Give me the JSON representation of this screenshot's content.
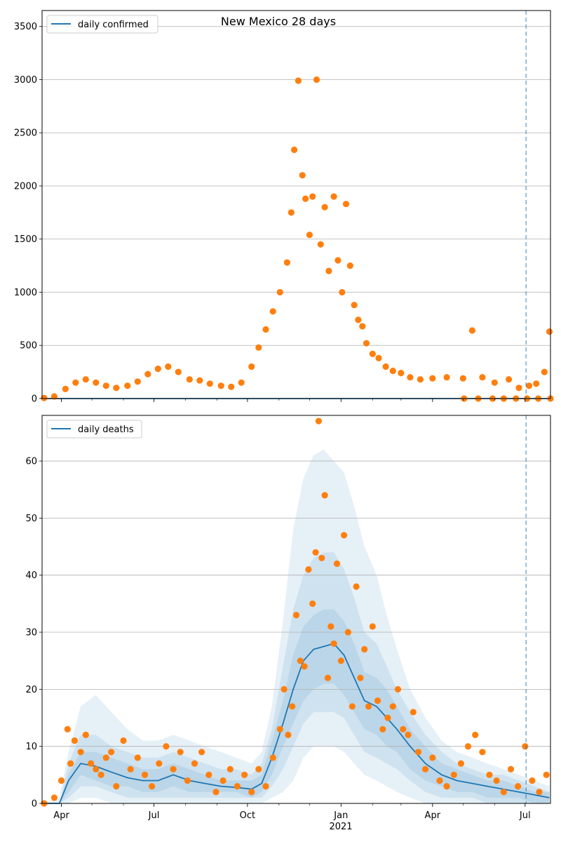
{
  "chart_data": [
    {
      "type": "scatter",
      "title": "New Mexico 28 days",
      "legend": {
        "label": "daily confirmed",
        "placement": "top-left"
      },
      "x_range": [
        "2020-03-13",
        "2021-07-26"
      ],
      "ylim": [
        0,
        3650
      ],
      "y_ticks": [
        0,
        500,
        1000,
        1500,
        2000,
        2500,
        3000,
        3500
      ],
      "grid": "horizontal",
      "forecast_start": "2021-07-02",
      "colors": {
        "line": "#1f77b4",
        "points": "#ff7f0e",
        "band": "#1f77b4",
        "vline": "#1f77b4"
      },
      "line_series": {
        "name": "daily confirmed",
        "x": [
          "2020-03-13",
          "2021-07-26"
        ],
        "y": [
          0,
          0
        ]
      },
      "observed": {
        "x": [
          "2020-03-15",
          "2020-03-25",
          "2020-04-05",
          "2020-04-15",
          "2020-04-25",
          "2020-05-05",
          "2020-05-15",
          "2020-05-25",
          "2020-06-05",
          "2020-06-15",
          "2020-06-25",
          "2020-07-05",
          "2020-07-15",
          "2020-07-25",
          "2020-08-05",
          "2020-08-15",
          "2020-08-25",
          "2020-09-05",
          "2020-09-15",
          "2020-09-25",
          "2020-10-05",
          "2020-10-12",
          "2020-10-19",
          "2020-10-26",
          "2020-11-02",
          "2020-11-09",
          "2020-11-13",
          "2020-11-16",
          "2020-11-20",
          "2020-11-24",
          "2020-11-27",
          "2020-12-01",
          "2020-12-04",
          "2020-12-08",
          "2020-12-12",
          "2020-12-16",
          "2020-12-20",
          "2020-12-25",
          "2020-12-29",
          "2021-01-02",
          "2021-01-06",
          "2021-01-10",
          "2021-01-14",
          "2021-01-18",
          "2021-01-22",
          "2021-01-26",
          "2021-02-01",
          "2021-02-07",
          "2021-02-14",
          "2021-02-21",
          "2021-03-01",
          "2021-03-10",
          "2021-03-20",
          "2021-04-01",
          "2021-04-15",
          "2021-05-01",
          "2021-05-10",
          "2021-05-20",
          "2021-06-01",
          "2021-06-15",
          "2021-06-25",
          "2021-07-05",
          "2021-07-12",
          "2021-07-20",
          "2021-07-25"
        ],
        "y": [
          5,
          20,
          90,
          150,
          180,
          150,
          120,
          100,
          120,
          160,
          230,
          280,
          300,
          250,
          180,
          170,
          140,
          120,
          110,
          150,
          300,
          480,
          650,
          820,
          1000,
          1280,
          1750,
          2340,
          2990,
          2100,
          1880,
          1540,
          1900,
          3000,
          1450,
          1800,
          1200,
          1900,
          1300,
          1000,
          1830,
          1250,
          880,
          740,
          680,
          520,
          420,
          380,
          300,
          260,
          240,
          200,
          180,
          190,
          200,
          190,
          640,
          200,
          150,
          180,
          100,
          120,
          140,
          250,
          630
        ]
      },
      "zero_reports": {
        "x": [
          "2021-05-02",
          "2021-05-16",
          "2021-05-30",
          "2021-06-10",
          "2021-06-22",
          "2021-07-03",
          "2021-07-14",
          "2021-07-26"
        ],
        "y": [
          0,
          0,
          0,
          0,
          0,
          0,
          0,
          0
        ]
      }
    },
    {
      "type": "line",
      "title": "",
      "legend": {
        "label": "daily deaths",
        "placement": "top-left"
      },
      "x_range": [
        "2020-03-13",
        "2021-07-26"
      ],
      "ylim": [
        0,
        68
      ],
      "y_ticks": [
        0,
        10,
        20,
        30,
        40,
        50,
        60
      ],
      "x_ticks": [
        "Apr",
        "Jul",
        "Oct",
        "Jan",
        "Apr",
        "Jul"
      ],
      "x_tick_dates": [
        "2020-04-01",
        "2020-07-01",
        "2020-10-01",
        "2021-01-01",
        "2021-04-01",
        "2021-07-01"
      ],
      "x_year_label": "2021",
      "grid": "horizontal",
      "forecast_start": "2021-07-02",
      "colors": {
        "line": "#1f77b4",
        "points": "#ff7f0e",
        "band": "#1f77b4",
        "vline": "#1f77b4"
      },
      "line_series": {
        "name": "daily deaths",
        "x": [
          "2020-03-13",
          "2020-03-30",
          "2020-04-08",
          "2020-04-20",
          "2020-05-05",
          "2020-05-20",
          "2020-06-05",
          "2020-06-20",
          "2020-07-05",
          "2020-07-20",
          "2020-08-05",
          "2020-08-20",
          "2020-09-05",
          "2020-09-20",
          "2020-10-05",
          "2020-10-15",
          "2020-10-25",
          "2020-11-05",
          "2020-11-15",
          "2020-11-25",
          "2020-12-05",
          "2020-12-15",
          "2020-12-25",
          "2021-01-04",
          "2021-01-14",
          "2021-01-24",
          "2021-02-05",
          "2021-02-15",
          "2021-02-25",
          "2021-03-10",
          "2021-03-25",
          "2021-04-10",
          "2021-04-25",
          "2021-05-10",
          "2021-05-25",
          "2021-06-10",
          "2021-06-25",
          "2021-07-10",
          "2021-07-25"
        ],
        "y": [
          0,
          0,
          4,
          7,
          6.5,
          5.5,
          4.5,
          4,
          4,
          5,
          4,
          3.5,
          3,
          2.8,
          2.5,
          3.5,
          8,
          14,
          20,
          25,
          27,
          27.5,
          28,
          26,
          22,
          18,
          17,
          15,
          13,
          10,
          7,
          5,
          4,
          3.5,
          3,
          2.5,
          2,
          1.5,
          1
        ]
      },
      "bands": [
        {
          "level": "outer",
          "lower": [
            0,
            0,
            0,
            1,
            1,
            0,
            0,
            0,
            0,
            0,
            0,
            0,
            0,
            0,
            0,
            0,
            1,
            2,
            4,
            8,
            10,
            10,
            10,
            9,
            7,
            5,
            4,
            3,
            2,
            1,
            0,
            0,
            0,
            0,
            0,
            0,
            0,
            0,
            0
          ],
          "upper": [
            0,
            1,
            9,
            17,
            19,
            16,
            13,
            11,
            11,
            12,
            11,
            10,
            9,
            8,
            7,
            9,
            17,
            32,
            48,
            57,
            61,
            62,
            60,
            58,
            52,
            45,
            40,
            33,
            27,
            20,
            15,
            11,
            9,
            8,
            7,
            6,
            5,
            4,
            3
          ]
        },
        {
          "level": "middle",
          "lower": [
            0,
            0,
            1,
            3,
            3,
            2,
            1,
            1,
            1,
            1,
            1,
            1,
            1,
            1,
            1,
            1,
            3,
            6,
            10,
            14,
            16,
            16,
            16,
            15,
            12,
            9,
            8,
            7,
            6,
            4,
            2,
            1,
            1,
            1,
            0,
            0,
            0,
            0,
            0
          ],
          "upper": [
            0,
            0,
            7,
            12,
            12,
            10,
            9,
            8,
            8,
            9,
            8,
            7,
            6,
            6,
            5,
            7,
            13,
            24,
            34,
            40,
            43,
            44,
            44,
            41,
            36,
            30,
            28,
            24,
            20,
            16,
            12,
            9,
            7,
            6,
            5,
            5,
            4,
            3,
            2
          ]
        },
        {
          "level": "inner",
          "lower": [
            0,
            0,
            2,
            5,
            4,
            3,
            3,
            2,
            2,
            3,
            2,
            2,
            2,
            2,
            1,
            2,
            5,
            10,
            14,
            18,
            20,
            21,
            21,
            19,
            16,
            13,
            12,
            10,
            9,
            6,
            4,
            3,
            2,
            2,
            1,
            1,
            1,
            0,
            0
          ],
          "upper": [
            0,
            0,
            5,
            9,
            9,
            8,
            7,
            6,
            6,
            7,
            6,
            5,
            4,
            4,
            4,
            5,
            11,
            18,
            26,
            31,
            33,
            34,
            34,
            32,
            28,
            23,
            22,
            20,
            17,
            13,
            10,
            7,
            6,
            5,
            4,
            4,
            3,
            2,
            2
          ]
        }
      ],
      "observed": {
        "x": [
          "2020-03-15",
          "2020-03-25",
          "2020-04-01",
          "2020-04-07",
          "2020-04-10",
          "2020-04-14",
          "2020-04-20",
          "2020-04-25",
          "2020-04-30",
          "2020-05-05",
          "2020-05-10",
          "2020-05-15",
          "2020-05-20",
          "2020-05-25",
          "2020-06-01",
          "2020-06-08",
          "2020-06-15",
          "2020-06-22",
          "2020-06-29",
          "2020-07-06",
          "2020-07-13",
          "2020-07-20",
          "2020-07-27",
          "2020-08-03",
          "2020-08-10",
          "2020-08-17",
          "2020-08-24",
          "2020-08-31",
          "2020-09-07",
          "2020-09-14",
          "2020-09-21",
          "2020-09-28",
          "2020-10-05",
          "2020-10-12",
          "2020-10-19",
          "2020-10-26",
          "2020-11-02",
          "2020-11-06",
          "2020-11-10",
          "2020-11-14",
          "2020-11-18",
          "2020-11-22",
          "2020-11-26",
          "2020-11-30",
          "2020-12-04",
          "2020-12-07",
          "2020-12-10",
          "2020-12-13",
          "2020-12-16",
          "2020-12-19",
          "2020-12-22",
          "2020-12-25",
          "2020-12-28",
          "2021-01-01",
          "2021-01-04",
          "2021-01-08",
          "2021-01-12",
          "2021-01-16",
          "2021-01-20",
          "2021-01-24",
          "2021-01-28",
          "2021-02-01",
          "2021-02-06",
          "2021-02-11",
          "2021-02-16",
          "2021-02-21",
          "2021-02-26",
          "2021-03-03",
          "2021-03-08",
          "2021-03-13",
          "2021-03-18",
          "2021-03-25",
          "2021-04-01",
          "2021-04-08",
          "2021-04-15",
          "2021-04-22",
          "2021-04-29",
          "2021-05-06",
          "2021-05-13",
          "2021-05-20",
          "2021-05-27",
          "2021-06-03",
          "2021-06-10",
          "2021-06-17",
          "2021-06-24",
          "2021-07-01",
          "2021-07-08",
          "2021-07-15",
          "2021-07-22"
        ],
        "y": [
          0,
          1,
          4,
          13,
          7,
          11,
          9,
          12,
          7,
          6,
          5,
          8,
          9,
          3,
          11,
          6,
          8,
          5,
          3,
          7,
          10,
          6,
          9,
          4,
          7,
          9,
          5,
          2,
          4,
          6,
          3,
          5,
          2,
          6,
          3,
          8,
          13,
          20,
          12,
          17,
          33,
          25,
          24,
          41,
          35,
          44,
          67,
          43,
          54,
          22,
          31,
          28,
          42,
          25,
          47,
          30,
          17,
          38,
          22,
          27,
          17,
          31,
          18,
          13,
          15,
          17,
          20,
          13,
          12,
          16,
          9,
          6,
          8,
          4,
          3,
          5,
          7,
          10,
          12,
          9,
          5,
          4,
          2,
          6,
          3,
          10,
          4,
          2,
          5
        ]
      }
    }
  ]
}
